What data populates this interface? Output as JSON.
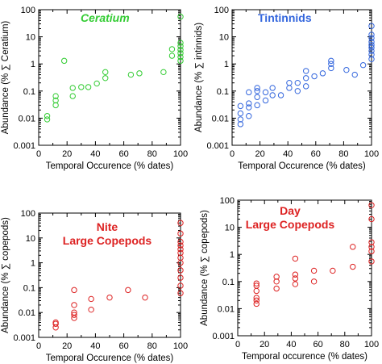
{
  "colors": {
    "green": "#33cc33",
    "blue": "#3366dd",
    "red": "#dd2222"
  },
  "chart_data": [
    {
      "type": "scatter",
      "title": "Ceratium",
      "title_style": "italic",
      "color": "#33cc33",
      "xlabel": "Temporal Occurence (% dates)",
      "ylabel": "Abundance (% ∑ Ceratium)",
      "xlim": [
        0,
        100
      ],
      "ylim": [
        0.001,
        100
      ],
      "yscale": "log",
      "xticks": [
        0,
        20,
        40,
        60,
        80,
        100
      ],
      "yticks": [
        {
          "v": 0.001,
          "label": "0.001"
        },
        {
          "v": 0.01,
          "label": "0.01"
        },
        {
          "v": 0.1,
          "label": "0.1"
        },
        {
          "v": 1,
          "label": "1"
        },
        {
          "v": 10,
          "label": "10"
        },
        {
          "v": 100,
          "label": "100"
        }
      ],
      "points": [
        [
          6,
          0.009
        ],
        [
          6,
          0.012
        ],
        [
          12,
          0.03
        ],
        [
          12,
          0.045
        ],
        [
          12,
          0.065
        ],
        [
          18,
          1.3
        ],
        [
          24,
          0.065
        ],
        [
          24,
          0.13
        ],
        [
          30,
          0.14
        ],
        [
          35,
          0.14
        ],
        [
          41,
          0.19
        ],
        [
          47,
          0.3
        ],
        [
          47,
          0.5
        ],
        [
          65,
          0.4
        ],
        [
          71,
          0.45
        ],
        [
          88,
          0.5
        ],
        [
          94,
          2.0
        ],
        [
          94,
          3.5
        ],
        [
          100,
          1.3
        ],
        [
          100,
          1.8
        ],
        [
          100,
          2.5
        ],
        [
          100,
          3.3
        ],
        [
          100,
          4.5
        ],
        [
          100,
          6
        ],
        [
          100,
          55
        ]
      ]
    },
    {
      "type": "scatter",
      "title": "Tintinnids",
      "title_style": "normal",
      "color": "#3366dd",
      "xlabel": "Temporal Occurence (% dates)",
      "ylabel": "Abundance (% ∑ intinnids)",
      "xlim": [
        0,
        100
      ],
      "ylim": [
        0.001,
        100
      ],
      "yscale": "log",
      "xticks": [
        0,
        20,
        40,
        60,
        80,
        100
      ],
      "yticks": [
        {
          "v": 0.001,
          "label": "0.001"
        },
        {
          "v": 0.01,
          "label": "0.01"
        },
        {
          "v": 0.1,
          "label": "0.1"
        },
        {
          "v": 1,
          "label": "1"
        },
        {
          "v": 10,
          "label": "10"
        },
        {
          "v": 100,
          "label": "100"
        }
      ],
      "points": [
        [
          6,
          0.006
        ],
        [
          6,
          0.009
        ],
        [
          6,
          0.015
        ],
        [
          6,
          0.028
        ],
        [
          12,
          0.012
        ],
        [
          12,
          0.025
        ],
        [
          12,
          0.035
        ],
        [
          12,
          0.09
        ],
        [
          18,
          0.03
        ],
        [
          18,
          0.06
        ],
        [
          18,
          0.1
        ],
        [
          18,
          0.13
        ],
        [
          24,
          0.045
        ],
        [
          24,
          0.09
        ],
        [
          29,
          0.07
        ],
        [
          29,
          0.13
        ],
        [
          35,
          0.07
        ],
        [
          41,
          0.13
        ],
        [
          41,
          0.2
        ],
        [
          47,
          0.1
        ],
        [
          47,
          0.2
        ],
        [
          53,
          0.15
        ],
        [
          53,
          0.3
        ],
        [
          53,
          0.55
        ],
        [
          59,
          0.35
        ],
        [
          65,
          0.45
        ],
        [
          71,
          0.7
        ],
        [
          71,
          1.0
        ],
        [
          71,
          1.3
        ],
        [
          82,
          0.6
        ],
        [
          88,
          0.4
        ],
        [
          94,
          0.9
        ],
        [
          100,
          1.5
        ],
        [
          100,
          2.2
        ],
        [
          100,
          3
        ],
        [
          100,
          4
        ],
        [
          100,
          5
        ],
        [
          100,
          6.5
        ],
        [
          100,
          9
        ],
        [
          100,
          12
        ],
        [
          100,
          25
        ]
      ]
    },
    {
      "type": "scatter",
      "title": "Nite\nLarge Copepods",
      "title_style": "normal",
      "color": "#dd2222",
      "xlabel": "Temporal Occurence (% dates)",
      "ylabel": "Abundance (% ∑ copepods)",
      "xlim": [
        0,
        100
      ],
      "ylim": [
        0.001,
        100
      ],
      "yscale": "log",
      "xticks": [
        0,
        20,
        40,
        60,
        80,
        100
      ],
      "yticks": [
        {
          "v": 0.001,
          "label": "0.001"
        },
        {
          "v": 0.01,
          "label": "0.01"
        },
        {
          "v": 0.1,
          "label": "0.1"
        },
        {
          "v": 1,
          "label": "1"
        },
        {
          "v": 10,
          "label": "10"
        },
        {
          "v": 100,
          "label": "100"
        }
      ],
      "points": [
        [
          12,
          0.0025
        ],
        [
          12,
          0.0035
        ],
        [
          12,
          0.004
        ],
        [
          25,
          0.006
        ],
        [
          25,
          0.008
        ],
        [
          25,
          0.01
        ],
        [
          25,
          0.02
        ],
        [
          25,
          0.08
        ],
        [
          37,
          0.013
        ],
        [
          37,
          0.035
        ],
        [
          50,
          0.04
        ],
        [
          63,
          0.08
        ],
        [
          75,
          0.04
        ],
        [
          100,
          0.06
        ],
        [
          100,
          0.12
        ],
        [
          100,
          0.25
        ],
        [
          100,
          0.5
        ],
        [
          100,
          1
        ],
        [
          100,
          1.6
        ],
        [
          100,
          2.5
        ],
        [
          100,
          3.5
        ],
        [
          100,
          5
        ],
        [
          100,
          7
        ],
        [
          100,
          15
        ],
        [
          100,
          40
        ]
      ]
    },
    {
      "type": "scatter",
      "title": "Day\nLarge Copepods",
      "title_style": "normal",
      "color": "#dd2222",
      "xlabel": "Temporal occurence (% dates)",
      "ylabel": "Abundance (% ∑ copepods)",
      "xlim": [
        0,
        100
      ],
      "ylim": [
        0.001,
        100
      ],
      "yscale": "log",
      "xticks": [
        0,
        20,
        40,
        60,
        80,
        100
      ],
      "yticks": [
        {
          "v": 0.001,
          "label": "0.001"
        },
        {
          "v": 0.01,
          "label": "0.01"
        },
        {
          "v": 0.1,
          "label": "0.1"
        },
        {
          "v": 1,
          "label": "1"
        },
        {
          "v": 10,
          "label": "10"
        },
        {
          "v": 100,
          "label": "100"
        }
      ],
      "points": [
        [
          14,
          0.015
        ],
        [
          14,
          0.02
        ],
        [
          14,
          0.025
        ],
        [
          14,
          0.045
        ],
        [
          14,
          0.07
        ],
        [
          14,
          0.085
        ],
        [
          29,
          0.055
        ],
        [
          29,
          0.1
        ],
        [
          29,
          0.15
        ],
        [
          43,
          0.08
        ],
        [
          43,
          0.13
        ],
        [
          43,
          0.18
        ],
        [
          43,
          0.7
        ],
        [
          57,
          0.1
        ],
        [
          57,
          0.25
        ],
        [
          71,
          0.25
        ],
        [
          86,
          0.35
        ],
        [
          86,
          1.9
        ],
        [
          100,
          0.55
        ],
        [
          100,
          1.3
        ],
        [
          100,
          1.9
        ],
        [
          100,
          2.8
        ],
        [
          100,
          20
        ],
        [
          100,
          65
        ]
      ]
    }
  ]
}
